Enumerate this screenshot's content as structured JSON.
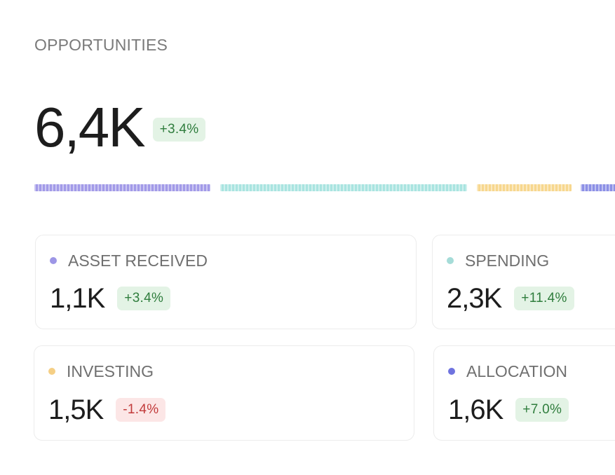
{
  "section": {
    "title": "OPPORTUNITIES"
  },
  "total": {
    "value": "6,4K",
    "change": "+3.4%",
    "trend": "up"
  },
  "distribution": [
    {
      "name": "Asset received",
      "color": "#a29ae8"
    },
    {
      "name": "Spending",
      "color": "#a9e4e0"
    },
    {
      "name": "Investing",
      "color": "#f7d78e"
    },
    {
      "name": "Allocation",
      "color": "#8c90e6"
    }
  ],
  "cards": [
    {
      "label": "ASSET RECEIVED",
      "value": "1,1K",
      "change": "+3.4%",
      "trend": "up",
      "color": "#9d96e6"
    },
    {
      "label": "SPENDING",
      "value": "2,3K",
      "change": "+11.4%",
      "trend": "up",
      "color": "#a5dcd8"
    },
    {
      "label": "INVESTING",
      "value": "1,5K",
      "change": "-1.4%",
      "trend": "down",
      "color": "#f5cf85"
    },
    {
      "label": "ALLOCATION",
      "value": "1,6K",
      "change": "+7.0%",
      "trend": "up",
      "color": "#6f73df"
    }
  ],
  "colors": {
    "up_bg": "#e3f3e5",
    "up_text": "#2f7d3d",
    "down_bg": "#fce6e6",
    "down_text": "#c23b3b"
  }
}
